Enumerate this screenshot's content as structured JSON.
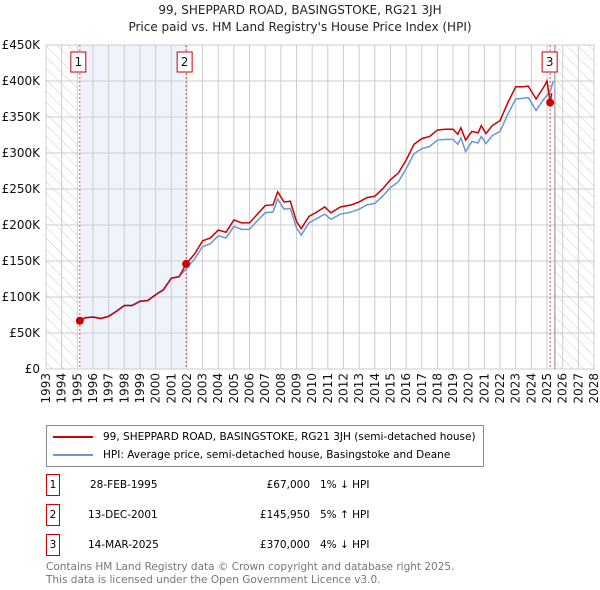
{
  "chart_data": {
    "type": "line",
    "title": "99, SHEPPARD ROAD, BASINGSTOKE, RG21 3JH",
    "subtitle": "Price paid vs. HM Land Registry's House Price Index (HPI)",
    "xlim": [
      1993,
      2028
    ],
    "ylim": [
      0,
      450000
    ],
    "x_ticks": [
      "1993",
      "1994",
      "1995",
      "1996",
      "1997",
      "1998",
      "1999",
      "2000",
      "2001",
      "2002",
      "2003",
      "2004",
      "2005",
      "2006",
      "2007",
      "2008",
      "2009",
      "2010",
      "2011",
      "2012",
      "2013",
      "2014",
      "2015",
      "2016",
      "2017",
      "2018",
      "2019",
      "2020",
      "2021",
      "2022",
      "2023",
      "2024",
      "2025",
      "2026",
      "2027",
      "2028"
    ],
    "y_ticks": [
      {
        "v": 0,
        "label": "£0"
      },
      {
        "v": 50000,
        "label": "£50K"
      },
      {
        "v": 100000,
        "label": "£100K"
      },
      {
        "v": 150000,
        "label": "£150K"
      },
      {
        "v": 200000,
        "label": "£200K"
      },
      {
        "v": 250000,
        "label": "£250K"
      },
      {
        "v": 300000,
        "label": "£300K"
      },
      {
        "v": 350000,
        "label": "£350K"
      },
      {
        "v": 400000,
        "label": "£400K"
      },
      {
        "v": 450000,
        "label": "£450K"
      }
    ],
    "grid": true,
    "series": [
      {
        "name": "99, SHEPPARD ROAD, BASINGSTOKE, RG21 3JH (semi-detached house)",
        "color": "#cc0000",
        "points": [
          [
            1995.16,
            67000
          ],
          [
            1995.5,
            71000
          ],
          [
            1996,
            72000
          ],
          [
            1996.5,
            70000
          ],
          [
            1997,
            73000
          ],
          [
            1997.5,
            80000
          ],
          [
            1998,
            88000
          ],
          [
            1998.5,
            88000
          ],
          [
            1999,
            94000
          ],
          [
            1999.5,
            95000
          ],
          [
            2000,
            103000
          ],
          [
            2000.5,
            110000
          ],
          [
            2001,
            126000
          ],
          [
            2001.5,
            128000
          ],
          [
            2001.95,
            146000
          ],
          [
            2002.5,
            160000
          ],
          [
            2003,
            178000
          ],
          [
            2003.5,
            182000
          ],
          [
            2004,
            193000
          ],
          [
            2004.5,
            190000
          ],
          [
            2005,
            207000
          ],
          [
            2005.5,
            203000
          ],
          [
            2006,
            203000
          ],
          [
            2006.5,
            215000
          ],
          [
            2007,
            227000
          ],
          [
            2007.5,
            228000
          ],
          [
            2007.8,
            246000
          ],
          [
            2008.2,
            232000
          ],
          [
            2008.6,
            233000
          ],
          [
            2009,
            205000
          ],
          [
            2009.3,
            195000
          ],
          [
            2009.8,
            212000
          ],
          [
            2010.3,
            218000
          ],
          [
            2010.8,
            225000
          ],
          [
            2011.2,
            217000
          ],
          [
            2011.8,
            225000
          ],
          [
            2012.5,
            228000
          ],
          [
            2013,
            232000
          ],
          [
            2013.5,
            238000
          ],
          [
            2014,
            240000
          ],
          [
            2014.5,
            250000
          ],
          [
            2015,
            263000
          ],
          [
            2015.5,
            272000
          ],
          [
            2016,
            290000
          ],
          [
            2016.5,
            312000
          ],
          [
            2017,
            320000
          ],
          [
            2017.5,
            323000
          ],
          [
            2018,
            332000
          ],
          [
            2018.5,
            333000
          ],
          [
            2019,
            333000
          ],
          [
            2019.3,
            326000
          ],
          [
            2019.5,
            335000
          ],
          [
            2019.8,
            318000
          ],
          [
            2020.2,
            330000
          ],
          [
            2020.6,
            328000
          ],
          [
            2020.8,
            338000
          ],
          [
            2021.1,
            327000
          ],
          [
            2021.5,
            338000
          ],
          [
            2022,
            345000
          ],
          [
            2022.5,
            370000
          ],
          [
            2023,
            392000
          ],
          [
            2023.5,
            392000
          ],
          [
            2023.8,
            393000
          ],
          [
            2024.3,
            375000
          ],
          [
            2024.8,
            392000
          ],
          [
            2025.0,
            400000
          ],
          [
            2025.2,
            370000
          ],
          [
            2025.3,
            383000
          ]
        ]
      },
      {
        "name": "HPI: Average price, semi-detached house, Basingstoke and Deane",
        "color": "#6a96d4",
        "points": [
          [
            1995.16,
            67700
          ],
          [
            1995.5,
            71500
          ],
          [
            1996,
            72500
          ],
          [
            1996.5,
            70500
          ],
          [
            1997,
            73500
          ],
          [
            1997.5,
            80500
          ],
          [
            1998,
            88500
          ],
          [
            1998.5,
            88500
          ],
          [
            1999,
            94500
          ],
          [
            1999.5,
            95500
          ],
          [
            2000,
            103500
          ],
          [
            2000.5,
            110500
          ],
          [
            2001,
            126500
          ],
          [
            2001.5,
            128500
          ],
          [
            2001.95,
            139000
          ],
          [
            2002.5,
            153000
          ],
          [
            2003,
            170000
          ],
          [
            2003.5,
            174000
          ],
          [
            2004,
            185000
          ],
          [
            2004.5,
            182000
          ],
          [
            2005,
            198000
          ],
          [
            2005.5,
            194000
          ],
          [
            2006,
            194000
          ],
          [
            2006.5,
            206000
          ],
          [
            2007,
            217000
          ],
          [
            2007.5,
            218000
          ],
          [
            2007.8,
            236000
          ],
          [
            2008.2,
            222000
          ],
          [
            2008.6,
            223000
          ],
          [
            2009,
            196000
          ],
          [
            2009.3,
            186000
          ],
          [
            2009.8,
            203000
          ],
          [
            2010.3,
            209000
          ],
          [
            2010.8,
            215000
          ],
          [
            2011.2,
            208000
          ],
          [
            2011.8,
            215000
          ],
          [
            2012.5,
            218000
          ],
          [
            2013,
            222000
          ],
          [
            2013.5,
            228000
          ],
          [
            2014,
            230000
          ],
          [
            2014.5,
            240000
          ],
          [
            2015,
            252000
          ],
          [
            2015.5,
            260000
          ],
          [
            2016,
            278000
          ],
          [
            2016.5,
            299000
          ],
          [
            2017,
            306000
          ],
          [
            2017.5,
            309000
          ],
          [
            2018,
            318000
          ],
          [
            2018.5,
            319000
          ],
          [
            2019,
            319000
          ],
          [
            2019.3,
            312000
          ],
          [
            2019.5,
            321000
          ],
          [
            2019.8,
            302000
          ],
          [
            2020.2,
            316000
          ],
          [
            2020.6,
            314000
          ],
          [
            2020.8,
            323000
          ],
          [
            2021.1,
            313000
          ],
          [
            2021.5,
            324000
          ],
          [
            2022,
            330000
          ],
          [
            2022.5,
            354000
          ],
          [
            2023,
            375000
          ],
          [
            2023.5,
            376000
          ],
          [
            2023.8,
            377000
          ],
          [
            2024.3,
            359000
          ],
          [
            2024.8,
            375000
          ],
          [
            2025.0,
            380000
          ],
          [
            2025.2,
            385000
          ],
          [
            2025.4,
            400000
          ]
        ]
      }
    ],
    "sales": [
      {
        "id": "1",
        "x": 1995.16,
        "value": 67000,
        "date": "28-FEB-1995",
        "price": "£67,000",
        "hpi": "1% ↓ HPI"
      },
      {
        "id": "2",
        "x": 2001.95,
        "value": 145950,
        "date": "13-DEC-2001",
        "price": "£145,950",
        "hpi": "5% ↑ HPI"
      },
      {
        "id": "3",
        "x": 2025.2,
        "value": 370000,
        "date": "14-MAR-2025",
        "price": "£370,000",
        "hpi": "4% ↓ HPI"
      }
    ],
    "data_end": 2025.4
  },
  "footer": [
    "Contains HM Land Registry data © Crown copyright and database right 2025.",
    "This data is licensed under the Open Government Licence v3.0."
  ]
}
